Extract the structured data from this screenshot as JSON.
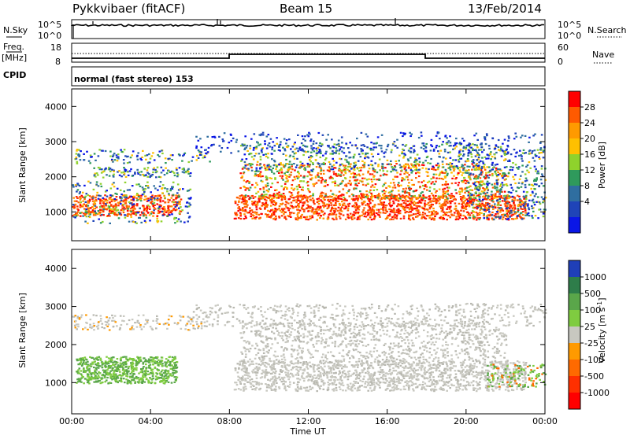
{
  "header": {
    "station": "Pykkvibaer (fitACF)",
    "beam": "Beam 15",
    "date": "13/Feb/2014"
  },
  "top_panels": {
    "nsky_label": "N.Sky",
    "nsearch_label": "N.Search",
    "nsky_ticks": [
      "10^5",
      "10^0"
    ],
    "nsky_right_ticks": [
      "10^5",
      "10^0"
    ],
    "freq_label_1": "Freq.",
    "freq_label_2": "[MHz]",
    "freq_ticks": [
      "18",
      "8"
    ],
    "nave_ticks": [
      "60",
      "0"
    ],
    "nave_label": "Nave",
    "cpid_label": "CPID",
    "cpid_text": "normal (fast stereo) 153"
  },
  "chart_data": [
    {
      "type": "heatmap",
      "name": "Power",
      "ylabel": "Slant Range [km]",
      "yticks": [
        "4000",
        "3000",
        "2000",
        "1000"
      ],
      "ylim": [
        180,
        4500
      ],
      "colorbar_label": "Power [dB]",
      "colorbar_ticks": [
        "28",
        "24",
        "20",
        "16",
        "12",
        "8",
        "4"
      ],
      "colorbar_colors": [
        "#ff0000",
        "#ff5a00",
        "#ff9a00",
        "#ffc000",
        "#8fd22c",
        "#2f9a5c",
        "#2f6ea0",
        "#1f44b8",
        "#0a16e6"
      ]
    },
    {
      "type": "heatmap",
      "name": "Velocity",
      "ylabel": "Slant Range [km]",
      "yticks": [
        "4000",
        "3000",
        "2000",
        "1000"
      ],
      "ylim": [
        180,
        4500
      ],
      "xlabel": "Time UT",
      "xticks": [
        "00:00",
        "04:00",
        "08:00",
        "12:00",
        "16:00",
        "20:00",
        "00:00"
      ],
      "colorbar_label": "Velocity [m s",
      "colorbar_label_sup": "-1",
      "colorbar_label_end": "]",
      "colorbar_ticks": [
        "1000",
        "500",
        "100",
        "25",
        "-25",
        "-100",
        "-500",
        "-1000"
      ],
      "colorbar_colors": [
        "#1f3fb8",
        "#2e7d4a",
        "#5aa64a",
        "#7fcc40",
        "#c8c8c0",
        "#ff9a00",
        "#ff6a00",
        "#ff3000",
        "#ff0000"
      ]
    }
  ]
}
